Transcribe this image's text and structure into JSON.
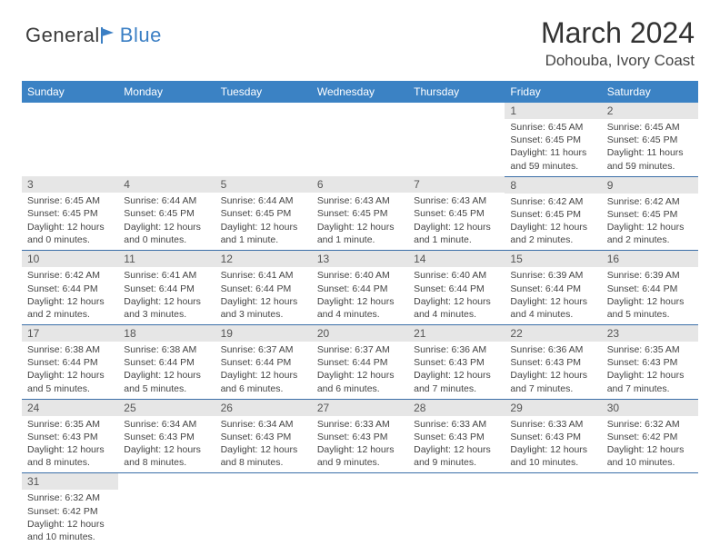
{
  "brand": {
    "part1": "General",
    "part2": "Blue"
  },
  "title": "March 2024",
  "location": "Dohouba, Ivory Coast",
  "colors": {
    "header_bg": "#3b82c4",
    "header_text": "#ffffff",
    "daynum_bg": "#e6e6e6",
    "row_border": "#3b6fa8",
    "logo_blue": "#3b7fc4"
  },
  "weekdays": [
    "Sunday",
    "Monday",
    "Tuesday",
    "Wednesday",
    "Thursday",
    "Friday",
    "Saturday"
  ],
  "days": {
    "1": {
      "sunrise": "6:45 AM",
      "sunset": "6:45 PM",
      "daylight": "11 hours and 59 minutes."
    },
    "2": {
      "sunrise": "6:45 AM",
      "sunset": "6:45 PM",
      "daylight": "11 hours and 59 minutes."
    },
    "3": {
      "sunrise": "6:45 AM",
      "sunset": "6:45 PM",
      "daylight": "12 hours and 0 minutes."
    },
    "4": {
      "sunrise": "6:44 AM",
      "sunset": "6:45 PM",
      "daylight": "12 hours and 0 minutes."
    },
    "5": {
      "sunrise": "6:44 AM",
      "sunset": "6:45 PM",
      "daylight": "12 hours and 1 minute."
    },
    "6": {
      "sunrise": "6:43 AM",
      "sunset": "6:45 PM",
      "daylight": "12 hours and 1 minute."
    },
    "7": {
      "sunrise": "6:43 AM",
      "sunset": "6:45 PM",
      "daylight": "12 hours and 1 minute."
    },
    "8": {
      "sunrise": "6:42 AM",
      "sunset": "6:45 PM",
      "daylight": "12 hours and 2 minutes."
    },
    "9": {
      "sunrise": "6:42 AM",
      "sunset": "6:45 PM",
      "daylight": "12 hours and 2 minutes."
    },
    "10": {
      "sunrise": "6:42 AM",
      "sunset": "6:44 PM",
      "daylight": "12 hours and 2 minutes."
    },
    "11": {
      "sunrise": "6:41 AM",
      "sunset": "6:44 PM",
      "daylight": "12 hours and 3 minutes."
    },
    "12": {
      "sunrise": "6:41 AM",
      "sunset": "6:44 PM",
      "daylight": "12 hours and 3 minutes."
    },
    "13": {
      "sunrise": "6:40 AM",
      "sunset": "6:44 PM",
      "daylight": "12 hours and 4 minutes."
    },
    "14": {
      "sunrise": "6:40 AM",
      "sunset": "6:44 PM",
      "daylight": "12 hours and 4 minutes."
    },
    "15": {
      "sunrise": "6:39 AM",
      "sunset": "6:44 PM",
      "daylight": "12 hours and 4 minutes."
    },
    "16": {
      "sunrise": "6:39 AM",
      "sunset": "6:44 PM",
      "daylight": "12 hours and 5 minutes."
    },
    "17": {
      "sunrise": "6:38 AM",
      "sunset": "6:44 PM",
      "daylight": "12 hours and 5 minutes."
    },
    "18": {
      "sunrise": "6:38 AM",
      "sunset": "6:44 PM",
      "daylight": "12 hours and 5 minutes."
    },
    "19": {
      "sunrise": "6:37 AM",
      "sunset": "6:44 PM",
      "daylight": "12 hours and 6 minutes."
    },
    "20": {
      "sunrise": "6:37 AM",
      "sunset": "6:44 PM",
      "daylight": "12 hours and 6 minutes."
    },
    "21": {
      "sunrise": "6:36 AM",
      "sunset": "6:43 PM",
      "daylight": "12 hours and 7 minutes."
    },
    "22": {
      "sunrise": "6:36 AM",
      "sunset": "6:43 PM",
      "daylight": "12 hours and 7 minutes."
    },
    "23": {
      "sunrise": "6:35 AM",
      "sunset": "6:43 PM",
      "daylight": "12 hours and 7 minutes."
    },
    "24": {
      "sunrise": "6:35 AM",
      "sunset": "6:43 PM",
      "daylight": "12 hours and 8 minutes."
    },
    "25": {
      "sunrise": "6:34 AM",
      "sunset": "6:43 PM",
      "daylight": "12 hours and 8 minutes."
    },
    "26": {
      "sunrise": "6:34 AM",
      "sunset": "6:43 PM",
      "daylight": "12 hours and 8 minutes."
    },
    "27": {
      "sunrise": "6:33 AM",
      "sunset": "6:43 PM",
      "daylight": "12 hours and 9 minutes."
    },
    "28": {
      "sunrise": "6:33 AM",
      "sunset": "6:43 PM",
      "daylight": "12 hours and 9 minutes."
    },
    "29": {
      "sunrise": "6:33 AM",
      "sunset": "6:43 PM",
      "daylight": "12 hours and 10 minutes."
    },
    "30": {
      "sunrise": "6:32 AM",
      "sunset": "6:42 PM",
      "daylight": "12 hours and 10 minutes."
    },
    "31": {
      "sunrise": "6:32 AM",
      "sunset": "6:42 PM",
      "daylight": "12 hours and 10 minutes."
    }
  },
  "grid": [
    [
      null,
      null,
      null,
      null,
      null,
      "1",
      "2"
    ],
    [
      "3",
      "4",
      "5",
      "6",
      "7",
      "8",
      "9"
    ],
    [
      "10",
      "11",
      "12",
      "13",
      "14",
      "15",
      "16"
    ],
    [
      "17",
      "18",
      "19",
      "20",
      "21",
      "22",
      "23"
    ],
    [
      "24",
      "25",
      "26",
      "27",
      "28",
      "29",
      "30"
    ],
    [
      "31",
      null,
      null,
      null,
      null,
      null,
      null
    ]
  ],
  "labels": {
    "sunrise": "Sunrise: ",
    "sunset": "Sunset: ",
    "daylight": "Daylight: "
  }
}
